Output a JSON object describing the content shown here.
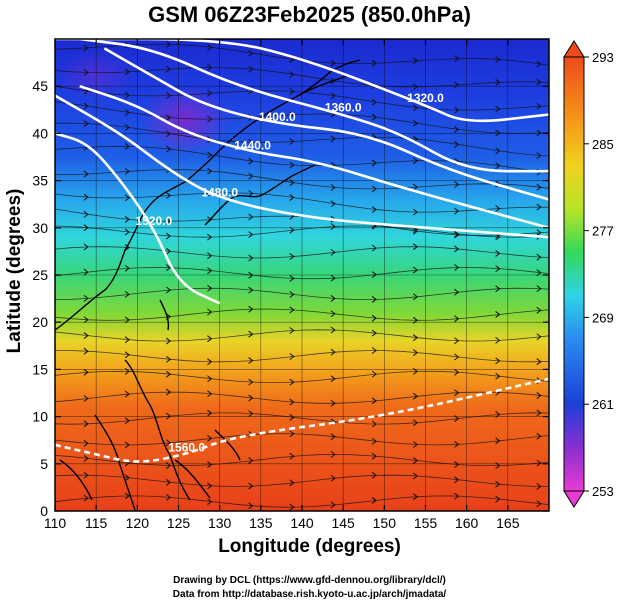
{
  "title": "GSM 06Z23Feb2025 (850.0hPa)",
  "axes": {
    "xlabel": "Longitude (degrees)",
    "ylabel": "Latitude  (degrees)",
    "xticks": [
      "110",
      "115",
      "120",
      "125",
      "130",
      "135",
      "140",
      "145",
      "150",
      "155",
      "160",
      "165"
    ],
    "yticks": [
      "0",
      "5",
      "10",
      "15",
      "20",
      "25",
      "30",
      "35",
      "40",
      "45"
    ]
  },
  "colorbar": {
    "ticks": [
      "253",
      "261",
      "269",
      "277",
      "285",
      "293"
    ],
    "colors": [
      "#e83cd4",
      "#8a2fd0",
      "#1c3fd8",
      "#2a8cf0",
      "#2fd3e8",
      "#34d85a",
      "#b8e428",
      "#f0d21e",
      "#f59a1a",
      "#ee4a1a"
    ]
  },
  "contour_labels": [
    "1320.0",
    "1360.0",
    "1400.0",
    "1440.0",
    "1480.0",
    "1520.0",
    "1560.0"
  ],
  "credits": {
    "line1": "Drawing by DCL (https://www.gfd-dennou.org/library/dcl/)",
    "line2": "Data from http://database.rish.kyoto-u.ac.jp/arch/jmadata/"
  },
  "chart_data": {
    "type": "heatmap",
    "title": "GSM 06Z23Feb2025 (850.0hPa)",
    "xlabel": "Longitude (degrees)",
    "ylabel": "Latitude  (degrees)",
    "xlim": [
      110,
      170
    ],
    "ylim": [
      0,
      50
    ],
    "colorbar_range": [
      253,
      293
    ],
    "contours": [
      {
        "label": "1320.0",
        "points": [
          [
            110,
            50
          ],
          [
            130,
            50
          ],
          [
            140,
            48
          ],
          [
            155,
            43
          ],
          [
            160,
            41
          ],
          [
            170,
            42
          ]
        ]
      },
      {
        "label": "1360.0",
        "points": [
          [
            113,
            50
          ],
          [
            122,
            49
          ],
          [
            132,
            45
          ],
          [
            145,
            42
          ],
          [
            152,
            40
          ],
          [
            160,
            36
          ],
          [
            170,
            36
          ]
        ]
      },
      {
        "label": "1400.0",
        "points": [
          [
            116,
            49
          ],
          [
            122,
            46
          ],
          [
            128,
            43
          ],
          [
            137,
            41
          ],
          [
            148,
            40
          ],
          [
            158,
            36
          ],
          [
            170,
            33
          ]
        ]
      },
      {
        "label": "1440.0",
        "points": [
          [
            113,
            45
          ],
          [
            120,
            43
          ],
          [
            126,
            40
          ],
          [
            134,
            38
          ],
          [
            142,
            37
          ],
          [
            153,
            34
          ],
          [
            170,
            30
          ]
        ]
      },
      {
        "label": "1480.0",
        "points": [
          [
            110,
            44
          ],
          [
            118,
            40
          ],
          [
            124,
            36
          ],
          [
            130,
            33
          ],
          [
            141,
            31
          ],
          [
            155,
            30
          ],
          [
            170,
            29
          ]
        ]
      },
      {
        "label": "1520.0",
        "points": [
          [
            110,
            40
          ],
          [
            114,
            39
          ],
          [
            118,
            35
          ],
          [
            122,
            30
          ],
          [
            125,
            24
          ],
          [
            130,
            22
          ]
        ]
      },
      {
        "label": "1560.0",
        "points": [
          [
            110,
            7
          ],
          [
            115,
            6
          ],
          [
            120,
            5
          ],
          [
            126,
            6
          ],
          [
            132,
            8
          ],
          [
            150,
            10
          ],
          [
            170,
            14
          ]
        ]
      }
    ]
  }
}
